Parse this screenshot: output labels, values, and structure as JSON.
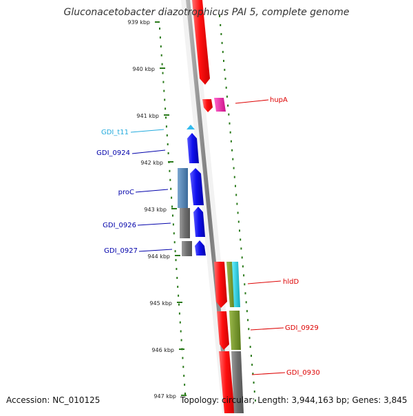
{
  "title": "Gluconacetobacter diazotrophicus PAI 5, complete genome",
  "footer": {
    "accession": "Accession: NC_010125",
    "stats": "Topology: circular; Length: 3,944,163 bp; Genes: 3,845"
  },
  "colors": {
    "backbone": "#8a8a8a",
    "tick": "#2a7a1a",
    "forward_gene": "#ff1a1a",
    "reverse_gene": "#1a1aee",
    "trna": "#33bbee",
    "label_red": "#dd0000",
    "label_blue": "#0000aa",
    "label_cyan": "#22aadd",
    "gray_band": "#777777",
    "steel_band": "#4a7fb0",
    "olive_band": "#7a9a2a",
    "cyan_band": "#22ccdd",
    "magenta_band": "#ee22aa"
  },
  "scale": {
    "unit": "kbp",
    "ticks": [
      "939 kbp",
      "940 kbp",
      "941 kbp",
      "942 kbp",
      "943 kbp",
      "944 kbp",
      "945 kbp",
      "946 kbp",
      "947 kbp"
    ]
  },
  "gene_labels": [
    {
      "text": "hupA",
      "color": "red"
    },
    {
      "text": "GDI_t11",
      "color": "cyan"
    },
    {
      "text": "GDI_0924",
      "color": "blue"
    },
    {
      "text": "proC",
      "color": "blue"
    },
    {
      "text": "GDI_0926",
      "color": "blue"
    },
    {
      "text": "GDI_0927",
      "color": "blue"
    },
    {
      "text": "hldD",
      "color": "red"
    },
    {
      "text": "GDI_0929",
      "color": "red"
    },
    {
      "text": "GDI_0930",
      "color": "red"
    }
  ]
}
